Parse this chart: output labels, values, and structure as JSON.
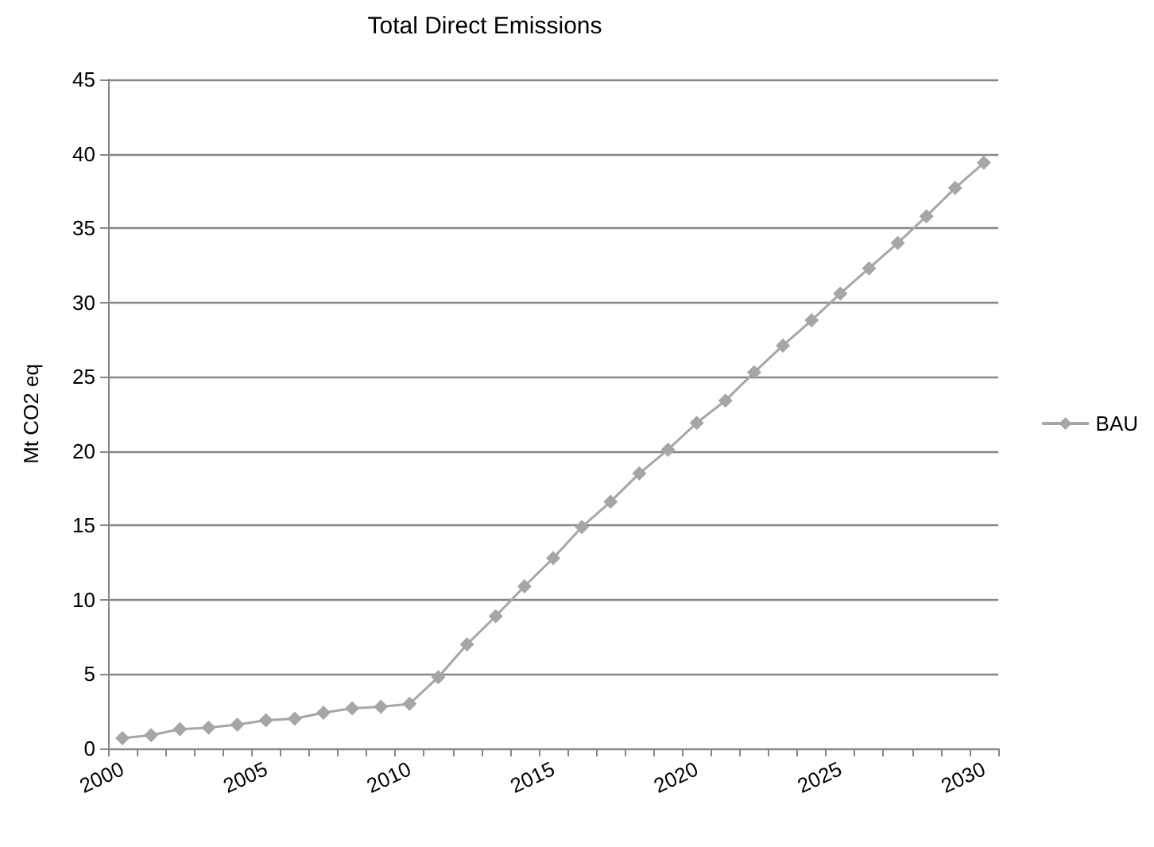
{
  "chart_data": {
    "type": "line",
    "title": "Total Direct Emissions",
    "ylabel": "Mt CO2 eq",
    "categories": [
      "2000",
      null,
      null,
      null,
      null,
      "2005",
      null,
      null,
      null,
      null,
      "2010",
      null,
      null,
      null,
      null,
      "2015",
      null,
      null,
      null,
      null,
      "2020",
      null,
      null,
      null,
      null,
      "2025",
      null,
      null,
      null,
      null,
      "2030"
    ],
    "series": [
      {
        "name": "BAU",
        "color": "#a6a6a6",
        "values": [
          0.7,
          0.9,
          1.3,
          1.4,
          1.6,
          1.9,
          2.0,
          2.4,
          2.7,
          2.8,
          3.0,
          4.8,
          7.0,
          8.9,
          10.9,
          12.8,
          14.9,
          16.6,
          18.5,
          20.1,
          21.9,
          23.4,
          25.3,
          27.1,
          28.8,
          30.6,
          32.3,
          34.0,
          35.8,
          37.7,
          39.4
        ]
      }
    ],
    "ylim": [
      0,
      45
    ],
    "yticks": [
      0,
      5,
      10,
      15,
      20,
      25,
      30,
      35,
      40,
      45
    ],
    "grid": "y",
    "legend": "right",
    "marker": "diamond",
    "line_style": "solid"
  }
}
